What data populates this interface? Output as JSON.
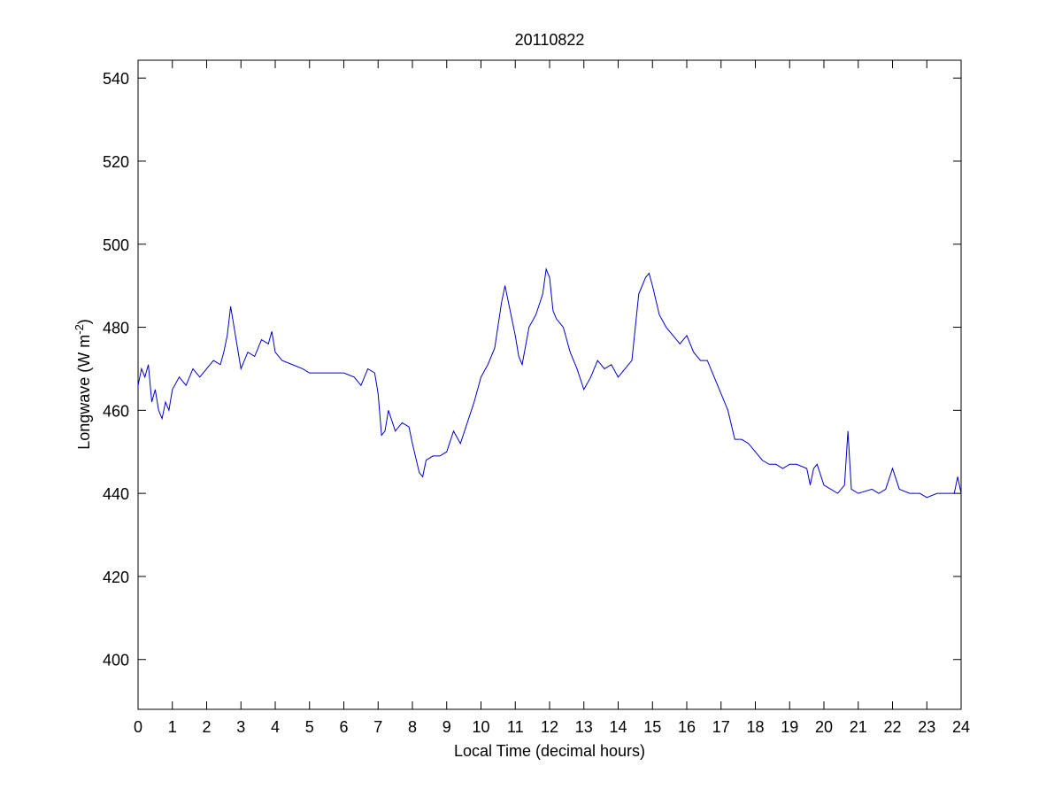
{
  "chart_data": {
    "type": "line",
    "title": "20110822",
    "xlabel": "Local Time (decimal hours)",
    "ylabel": [
      "Longwave (W m",
      "-2",
      ")"
    ],
    "x": [
      0,
      0.1,
      0.2,
      0.3,
      0.4,
      0.5,
      0.6,
      0.7,
      0.8,
      0.9,
      1.0,
      1.2,
      1.4,
      1.6,
      1.8,
      2.0,
      2.2,
      2.4,
      2.5,
      2.6,
      2.7,
      2.8,
      2.9,
      3.0,
      3.2,
      3.4,
      3.6,
      3.8,
      3.9,
      4.0,
      4.2,
      4.5,
      4.8,
      5.0,
      5.3,
      5.6,
      6.0,
      6.3,
      6.5,
      6.7,
      6.9,
      7.0,
      7.1,
      7.2,
      7.3,
      7.5,
      7.7,
      7.9,
      8.0,
      8.2,
      8.3,
      8.4,
      8.6,
      8.8,
      9.0,
      9.2,
      9.4,
      9.6,
      9.8,
      10.0,
      10.2,
      10.4,
      10.6,
      10.7,
      10.8,
      11.0,
      11.1,
      11.2,
      11.4,
      11.6,
      11.8,
      11.9,
      12.0,
      12.1,
      12.2,
      12.4,
      12.6,
      12.8,
      13.0,
      13.2,
      13.4,
      13.6,
      13.8,
      14.0,
      14.2,
      14.4,
      14.6,
      14.8,
      14.9,
      15.0,
      15.2,
      15.4,
      15.6,
      15.8,
      16.0,
      16.2,
      16.4,
      16.6,
      16.8,
      17.0,
      17.2,
      17.4,
      17.6,
      17.8,
      18.0,
      18.2,
      18.4,
      18.6,
      18.8,
      19.0,
      19.2,
      19.5,
      19.6,
      19.7,
      19.8,
      20.0,
      20.2,
      20.4,
      20.6,
      20.7,
      20.8,
      21.0,
      21.4,
      21.6,
      21.8,
      22.0,
      22.2,
      22.5,
      22.8,
      23.0,
      23.3,
      23.6,
      23.8,
      23.9,
      24.0
    ],
    "series": [
      {
        "name": "Longwave",
        "color": "#0000cc",
        "values": [
          466,
          470,
          468,
          471,
          462,
          465,
          460,
          458,
          462,
          460,
          465,
          468,
          466,
          470,
          468,
          470,
          472,
          471,
          474,
          478,
          485,
          480,
          475,
          470,
          474,
          473,
          477,
          476,
          479,
          474,
          472,
          471,
          470,
          469,
          469,
          469,
          469,
          468,
          466,
          470,
          469,
          464,
          454,
          455,
          460,
          455,
          457,
          456,
          452,
          445,
          444,
          448,
          449,
          449,
          450,
          455,
          452,
          457,
          462,
          468,
          471,
          475,
          486,
          490,
          486,
          478,
          473,
          471,
          480,
          483,
          488,
          494,
          492,
          484,
          482,
          480,
          474,
          470,
          465,
          468,
          472,
          470,
          471,
          468,
          470,
          472,
          488,
          492,
          493,
          490,
          483,
          480,
          478,
          476,
          478,
          474,
          472,
          472,
          468,
          464,
          460,
          453,
          453,
          452,
          450,
          448,
          447,
          447,
          446,
          447,
          447,
          446,
          442,
          446,
          447,
          442,
          441,
          440,
          442,
          455,
          441,
          440,
          441,
          440,
          441,
          446,
          441,
          440,
          440,
          439,
          440,
          440,
          440,
          444,
          440
        ]
      }
    ],
    "xlim": [
      0,
      24
    ],
    "ylim": [
      388,
      544.3
    ],
    "xticks": [
      0,
      1,
      2,
      3,
      4,
      5,
      6,
      7,
      8,
      9,
      10,
      11,
      12,
      13,
      14,
      15,
      16,
      17,
      18,
      19,
      20,
      21,
      22,
      23,
      24
    ],
    "yticks": [
      400,
      420,
      440,
      460,
      480,
      500,
      520,
      540
    ]
  }
}
